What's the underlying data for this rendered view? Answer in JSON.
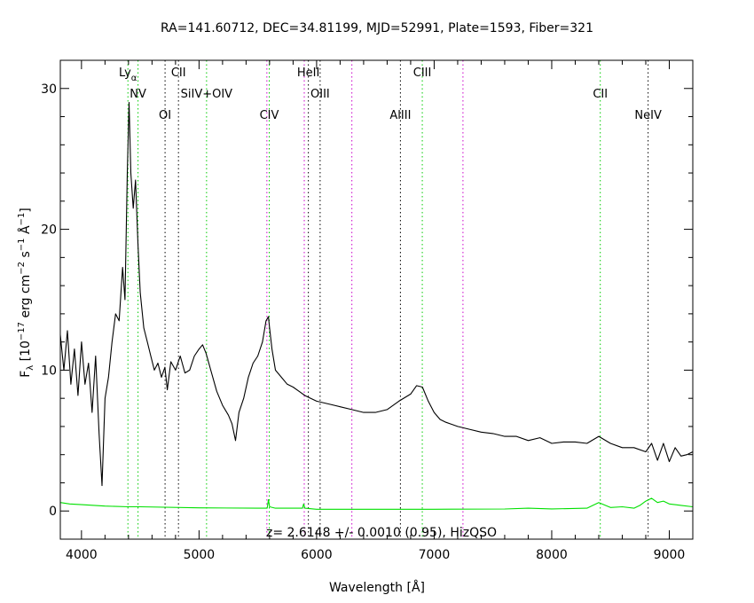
{
  "chart_data": {
    "type": "line",
    "title": "RA=141.60712, DEC=34.81199, MJD=52991, Plate=1593, Fiber=321",
    "xlabel": "Wavelength [Å]",
    "ylabel_parts": [
      "F",
      "λ",
      " [10",
      "−17",
      " erg cm",
      "−2",
      " s",
      "−1",
      " Å",
      "−1",
      "]"
    ],
    "annotation": "z= 2.6148 +/- 0.0010 (0.95), HizQSO",
    "xlim": [
      3820,
      9200
    ],
    "ylim": [
      -2,
      32
    ],
    "x_ticks": [
      4000,
      5000,
      6000,
      7000,
      8000,
      9000
    ],
    "y_ticks": [
      0,
      10,
      20,
      30
    ],
    "colors": {
      "flux": "#000000",
      "error": "#00e000",
      "emission_line": "#00cc00",
      "absorption_line": "#000000",
      "sky_line": "#cc00cc"
    },
    "lines": [
      {
        "label": "Ly",
        "sub": "α",
        "wavelength": 4395,
        "style": "emission"
      },
      {
        "label": "NV",
        "wavelength": 4481,
        "style": "emission"
      },
      {
        "label": "OI",
        "wavelength": 4711,
        "style": "absorption"
      },
      {
        "label": "CII",
        "wavelength": 4825,
        "style": "absorption"
      },
      {
        "label": "SiIV+OIV",
        "wavelength": 5064,
        "style": "emission"
      },
      {
        "label": "CIV",
        "wavelength": 5597,
        "style": "emission"
      },
      {
        "label": "HeII",
        "wavelength": 5930,
        "style": "absorption"
      },
      {
        "label": "OIII",
        "wavelength": 6030,
        "style": "absorption"
      },
      {
        "label": "AlIII",
        "wavelength": 6713,
        "style": "absorption"
      },
      {
        "label": "CIII",
        "wavelength": 6899,
        "style": "emission"
      },
      {
        "label": "CII",
        "wavelength": 8413,
        "style": "emission"
      },
      {
        "label": "NeIV",
        "wavelength": 8820,
        "style": "absorption"
      }
    ],
    "sky_lines": [
      5577,
      5895,
      6300,
      7245
    ],
    "series": [
      {
        "name": "flux",
        "x": [
          3820,
          3850,
          3880,
          3910,
          3940,
          3970,
          4000,
          4030,
          4060,
          4090,
          4120,
          4150,
          4175,
          4200,
          4230,
          4260,
          4290,
          4320,
          4350,
          4370,
          4390,
          4405,
          4420,
          4440,
          4460,
          4480,
          4500,
          4530,
          4560,
          4590,
          4620,
          4650,
          4680,
          4710,
          4730,
          4760,
          4800,
          4840,
          4880,
          4920,
          4960,
          5000,
          5030,
          5060,
          5100,
          5150,
          5200,
          5250,
          5280,
          5310,
          5340,
          5380,
          5420,
          5460,
          5500,
          5540,
          5570,
          5590,
          5600,
          5620,
          5650,
          5700,
          5750,
          5800,
          5850,
          5900,
          5950,
          6000,
          6100,
          6200,
          6300,
          6400,
          6500,
          6600,
          6700,
          6800,
          6850,
          6900,
          6950,
          7000,
          7050,
          7100,
          7200,
          7300,
          7400,
          7500,
          7600,
          7700,
          7800,
          7900,
          8000,
          8100,
          8200,
          8300,
          8400,
          8500,
          8600,
          8700,
          8800,
          8850,
          8900,
          8950,
          9000,
          9050,
          9100,
          9150,
          9200
        ],
        "y": [
          12.5,
          10.0,
          12.8,
          9.0,
          11.5,
          8.2,
          12.0,
          9.0,
          10.5,
          7.0,
          11.0,
          5.5,
          1.8,
          8.0,
          9.5,
          12.0,
          14.0,
          13.5,
          17.3,
          15.0,
          24.0,
          29.0,
          24.0,
          21.5,
          23.5,
          19.0,
          15.5,
          13.0,
          12.0,
          11.0,
          10.0,
          10.5,
          9.5,
          10.2,
          8.6,
          10.6,
          10.0,
          11.0,
          9.8,
          10.0,
          11.0,
          11.5,
          11.8,
          11.2,
          10.0,
          8.5,
          7.5,
          6.8,
          6.2,
          5.0,
          7.0,
          8.0,
          9.5,
          10.5,
          11.0,
          12.0,
          13.5,
          13.8,
          13.0,
          11.5,
          10.0,
          9.5,
          9.0,
          8.8,
          8.5,
          8.2,
          8.0,
          7.8,
          7.6,
          7.4,
          7.2,
          7.0,
          7.0,
          7.2,
          7.8,
          8.3,
          8.9,
          8.8,
          7.8,
          7.0,
          6.5,
          6.3,
          6.0,
          5.8,
          5.6,
          5.5,
          5.3,
          5.3,
          5.0,
          5.2,
          4.8,
          4.9,
          4.9,
          4.8,
          5.3,
          4.8,
          4.5,
          4.5,
          4.2,
          4.8,
          3.6,
          4.8,
          3.5,
          4.5,
          3.9,
          4.0,
          4.2
        ]
      },
      {
        "name": "error",
        "x": [
          3820,
          3900,
          4000,
          4200,
          4400,
          4500,
          5000,
          5500,
          5580,
          5590,
          5600,
          5650,
          5880,
          5890,
          5900,
          6000,
          7000,
          7600,
          7800,
          8000,
          8300,
          8350,
          8400,
          8500,
          8600,
          8700,
          8750,
          8800,
          8850,
          8900,
          8950,
          9000,
          9100,
          9200
        ],
        "y": [
          0.6,
          0.5,
          0.45,
          0.35,
          0.3,
          0.3,
          0.22,
          0.2,
          0.2,
          0.8,
          0.3,
          0.2,
          0.2,
          0.5,
          0.2,
          0.12,
          0.12,
          0.14,
          0.2,
          0.15,
          0.2,
          0.4,
          0.6,
          0.25,
          0.3,
          0.2,
          0.4,
          0.7,
          0.9,
          0.6,
          0.7,
          0.5,
          0.4,
          0.3
        ]
      }
    ]
  }
}
